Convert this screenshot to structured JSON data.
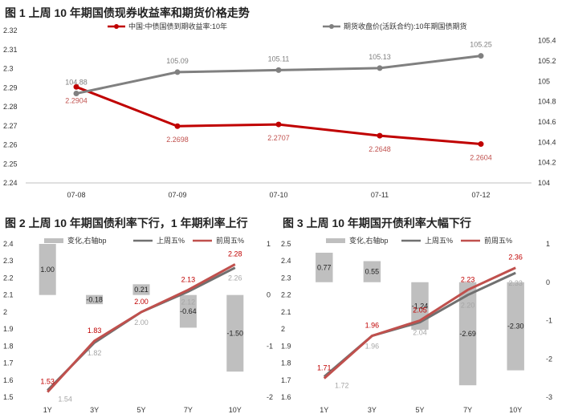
{
  "chart_data": [
    {
      "type": "line",
      "title": "图 1  上周 10 年期国债现券收益率和期货价格走势",
      "categories": [
        "07-08",
        "07-09",
        "07-10",
        "07-11",
        "07-12"
      ],
      "series": [
        {
          "name": "中国:中债国债到期收益率:10年",
          "axis": "left",
          "color": "#c00000",
          "values": [
            2.2904,
            2.2698,
            2.2707,
            2.2648,
            2.2604
          ],
          "labels": [
            "2.2904",
            "2.2698",
            "2.2707",
            "2.2648",
            "2.2604"
          ]
        },
        {
          "name": "期货收盘价(活跃合约):10年期国债期货",
          "axis": "right",
          "color": "#808080",
          "values": [
            104.88,
            105.09,
            105.11,
            105.13,
            105.25
          ],
          "labels": [
            "104.88",
            "105.09",
            "105.11",
            "105.13",
            "105.25"
          ]
        }
      ],
      "ylim_left": [
        2.24,
        2.32
      ],
      "yticks_left": [
        "2.24",
        "2.25",
        "2.26",
        "2.27",
        "2.28",
        "2.29",
        "2.3",
        "2.31",
        "2.32"
      ],
      "ylim_right": [
        104.0,
        105.5
      ],
      "yticks_right": [
        "104",
        "104.2",
        "104.4",
        "104.6",
        "104.8",
        "105",
        "105.2",
        "105.4"
      ]
    },
    {
      "type": "bar+line",
      "title": "图 2  上周 10 年期国债利率下行，1 年期利率上行",
      "categories": [
        "1Y",
        "3Y",
        "5Y",
        "7Y",
        "10Y"
      ],
      "bars": {
        "name": "变化,右轴bp",
        "axis": "right",
        "color": "#bfbfbf",
        "values": [
          1.0,
          -0.18,
          0.21,
          -0.64,
          -1.5
        ],
        "labels": [
          "1.00",
          "-0.18",
          "0.21",
          "-0.64",
          "-1.50"
        ]
      },
      "series": [
        {
          "name": "上周五%",
          "axis": "left",
          "color": "#707070",
          "values": [
            1.54,
            1.82,
            2.0,
            2.12,
            2.26
          ],
          "labels": [
            "1.54",
            "1.82",
            "2.00",
            "2.12",
            "2.26"
          ]
        },
        {
          "name": "前周五%",
          "axis": "left",
          "color": "#c0504d",
          "values": [
            1.53,
            1.83,
            2.0,
            2.13,
            2.28
          ],
          "labels": [
            "1.53",
            "1.83",
            "2.00",
            "2.13",
            "2.28"
          ]
        }
      ],
      "ylim_left": [
        1.5,
        2.4
      ],
      "yticks_left": [
        "1.5",
        "1.6",
        "1.7",
        "1.8",
        "1.9",
        "2",
        "2.1",
        "2.2",
        "2.3",
        "2.4"
      ],
      "ylim_right": [
        -2,
        1
      ],
      "yticks_right": [
        "-2",
        "-1",
        "0",
        "1"
      ]
    },
    {
      "type": "bar+line",
      "title": "图 3  上周 10 年期国开债利率大幅下行",
      "categories": [
        "1Y",
        "3Y",
        "5Y",
        "7Y",
        "10Y"
      ],
      "bars": {
        "name": "变化,右轴bp",
        "axis": "right",
        "color": "#bfbfbf",
        "values": [
          0.77,
          0.55,
          -1.24,
          -2.69,
          -2.3
        ],
        "labels": [
          "0.77",
          "0.55",
          "-1.24",
          "-2.69",
          "-2.30"
        ]
      },
      "series": [
        {
          "name": "上周五%",
          "axis": "left",
          "color": "#707070",
          "values": [
            1.72,
            1.96,
            2.04,
            2.2,
            2.33
          ],
          "labels": [
            "1.72",
            "1.96",
            "2.04",
            "2.20",
            "2.33"
          ]
        },
        {
          "name": "前周五%",
          "axis": "left",
          "color": "#c0504d",
          "values": [
            1.71,
            1.96,
            2.05,
            2.23,
            2.36
          ],
          "labels": [
            "1.71",
            "1.96",
            "2.05",
            "2.23",
            "2.36"
          ]
        }
      ],
      "ylim_left": [
        1.6,
        2.5
      ],
      "yticks_left": [
        "1.6",
        "1.7",
        "1.8",
        "1.9",
        "2",
        "2.1",
        "2.2",
        "2.3",
        "2.4",
        "2.5"
      ],
      "ylim_right": [
        -3,
        1
      ],
      "yticks_right": [
        "-3",
        "-2",
        "-1",
        "0",
        "1"
      ]
    }
  ]
}
